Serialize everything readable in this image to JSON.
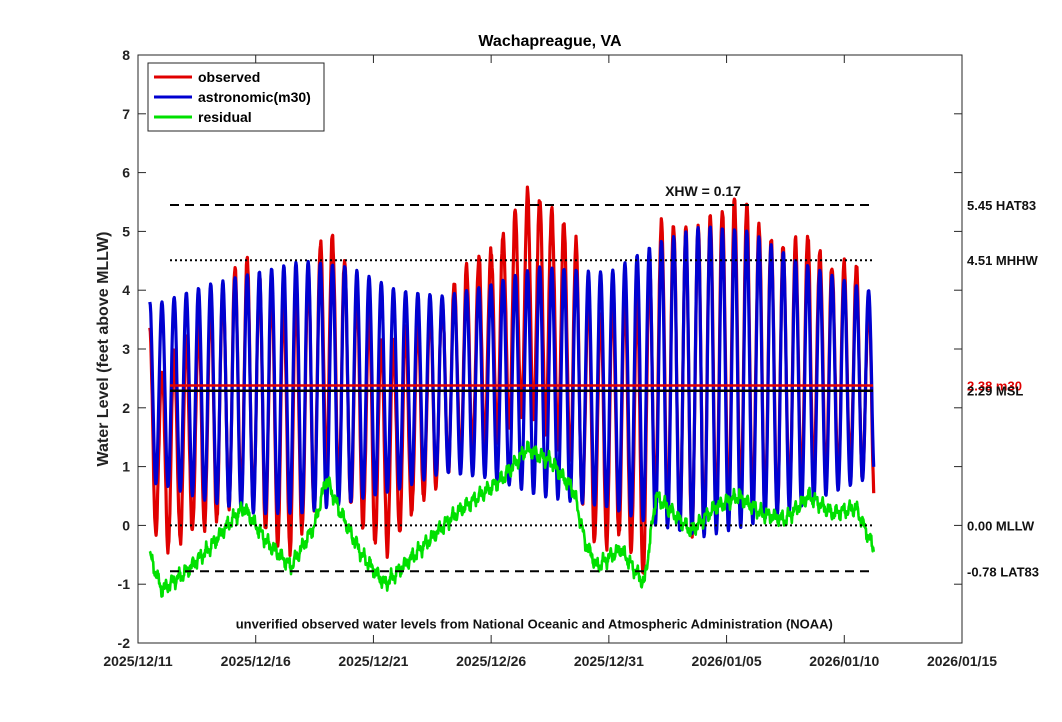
{
  "chart_data": {
    "type": "line",
    "title": "Wachapreague, VA",
    "ylabel": "Water Level (feet above MLLW)",
    "xlabel": "",
    "ylim": [
      -2,
      8
    ],
    "y_ticks": [
      -2,
      -1,
      0,
      1,
      2,
      3,
      4,
      5,
      6,
      7,
      8
    ],
    "x_range": [
      "2025-12-11",
      "2026-01-15"
    ],
    "x_ticks": [
      {
        "date": "2025-12-11",
        "label": "2025/12/11"
      },
      {
        "date": "2025-12-16",
        "label": "2025/12/16"
      },
      {
        "date": "2025-12-21",
        "label": "2025/12/21"
      },
      {
        "date": "2025-12-26",
        "label": "2025/12/26"
      },
      {
        "date": "2025-12-31",
        "label": "2025/12/31"
      },
      {
        "date": "2026-01-05",
        "label": "2026/01/05"
      },
      {
        "date": "2026-01-10",
        "label": "2026/01/10"
      },
      {
        "date": "2026-01-15",
        "label": "2026/01/15"
      }
    ],
    "grid": false,
    "legend": {
      "placement": "top-left",
      "entries": [
        {
          "name": "observed",
          "color": "#e00000"
        },
        {
          "name": "astronomic(m30)",
          "color": "#0000d0"
        },
        {
          "name": "residual",
          "color": "#00e000"
        }
      ]
    },
    "data_start": "2025-12-11 12:00",
    "data_end": "2026-01-11 06:00",
    "tidal_period_hours": 12.42,
    "astronomic_highs": [
      {
        "date": "2025-12-12",
        "value": 3.8
      },
      {
        "date": "2025-12-14",
        "value": 4.1
      },
      {
        "date": "2025-12-16",
        "value": 4.3
      },
      {
        "date": "2025-12-18",
        "value": 4.5
      },
      {
        "date": "2025-12-20",
        "value": 4.4
      },
      {
        "date": "2025-12-22",
        "value": 4.0
      },
      {
        "date": "2025-12-24",
        "value": 3.9
      },
      {
        "date": "2025-12-26",
        "value": 4.1
      },
      {
        "date": "2025-12-28",
        "value": 4.4
      },
      {
        "date": "2025-12-31",
        "value": 4.3
      },
      {
        "date": "2026-01-02",
        "value": 4.8
      },
      {
        "date": "2026-01-04",
        "value": 5.1
      },
      {
        "date": "2026-01-06",
        "value": 5.0
      },
      {
        "date": "2026-01-08",
        "value": 4.5
      },
      {
        "date": "2026-01-11",
        "value": 4.0
      }
    ],
    "astronomic_lows": [
      {
        "date": "2025-12-12",
        "value": 0.7
      },
      {
        "date": "2025-12-14",
        "value": 0.4
      },
      {
        "date": "2025-12-16",
        "value": 0.2
      },
      {
        "date": "2025-12-18",
        "value": 0.2
      },
      {
        "date": "2025-12-20",
        "value": 0.4
      },
      {
        "date": "2025-12-22",
        "value": 0.6
      },
      {
        "date": "2025-12-24",
        "value": 0.9
      },
      {
        "date": "2025-12-26",
        "value": 0.8
      },
      {
        "date": "2025-12-28",
        "value": 0.5
      },
      {
        "date": "2025-12-31",
        "value": 0.3
      },
      {
        "date": "2026-01-02",
        "value": 0.0
      },
      {
        "date": "2026-01-04",
        "value": -0.2
      },
      {
        "date": "2026-01-06",
        "value": 0.0
      },
      {
        "date": "2026-01-08",
        "value": 0.3
      },
      {
        "date": "2026-01-11",
        "value": 0.8
      }
    ],
    "residual": [
      {
        "date": "2025-12-11 12:00",
        "value": -0.5
      },
      {
        "date": "2025-12-12 00:00",
        "value": -1.1
      },
      {
        "date": "2025-12-13 00:00",
        "value": -0.8
      },
      {
        "date": "2025-12-14 00:00",
        "value": -0.4
      },
      {
        "date": "2025-12-15 00:00",
        "value": 0.1
      },
      {
        "date": "2025-12-15 12:00",
        "value": 0.3
      },
      {
        "date": "2025-12-16 12:00",
        "value": -0.3
      },
      {
        "date": "2025-12-17 12:00",
        "value": -0.7
      },
      {
        "date": "2025-12-18 12:00",
        "value": 0.0
      },
      {
        "date": "2025-12-19 00:00",
        "value": 0.8
      },
      {
        "date": "2025-12-19 12:00",
        "value": 0.3
      },
      {
        "date": "2025-12-20 12:00",
        "value": -0.5
      },
      {
        "date": "2025-12-21 12:00",
        "value": -1.0
      },
      {
        "date": "2025-12-22 12:00",
        "value": -0.6
      },
      {
        "date": "2025-12-23 12:00",
        "value": -0.2
      },
      {
        "date": "2025-12-24 12:00",
        "value": 0.2
      },
      {
        "date": "2025-12-25 12:00",
        "value": 0.5
      },
      {
        "date": "2025-12-26 12:00",
        "value": 0.8
      },
      {
        "date": "2025-12-27 12:00",
        "value": 1.3
      },
      {
        "date": "2025-12-28 12:00",
        "value": 1.1
      },
      {
        "date": "2025-12-29 12:00",
        "value": 0.6
      },
      {
        "date": "2025-12-30 00:00",
        "value": -0.3
      },
      {
        "date": "2025-12-30 12:00",
        "value": -0.7
      },
      {
        "date": "2025-12-31 12:00",
        "value": -0.4
      },
      {
        "date": "2026-01-01 12:00",
        "value": -1.0
      },
      {
        "date": "2026-01-02 00:00",
        "value": 0.5
      },
      {
        "date": "2026-01-02 12:00",
        "value": 0.3
      },
      {
        "date": "2026-01-03 12:00",
        "value": -0.1
      },
      {
        "date": "2026-01-04 12:00",
        "value": 0.3
      },
      {
        "date": "2026-01-05 12:00",
        "value": 0.5
      },
      {
        "date": "2026-01-06 12:00",
        "value": 0.2
      },
      {
        "date": "2026-01-07 12:00",
        "value": 0.1
      },
      {
        "date": "2026-01-08 12:00",
        "value": 0.5
      },
      {
        "date": "2026-01-09 12:00",
        "value": 0.2
      },
      {
        "date": "2026-01-10 12:00",
        "value": 0.3
      },
      {
        "date": "2026-01-11 06:00",
        "value": -0.4
      }
    ],
    "reference_lines": [
      {
        "value": 5.45,
        "label": "5.45 HAT83",
        "style": "dashed",
        "color": "#000000"
      },
      {
        "value": 4.51,
        "label": "4.51 MHHW",
        "style": "dotted",
        "color": "#000000"
      },
      {
        "value": 2.38,
        "label": "2.38 m30",
        "style": "solid",
        "color": "#e00000"
      },
      {
        "value": 2.29,
        "label": "2.29 MSL",
        "style": "solid",
        "color": "#000000"
      },
      {
        "value": 0.0,
        "label": "0.00 MLLW",
        "style": "dotted",
        "color": "#000000"
      },
      {
        "value": -0.78,
        "label": "-0.78 LAT83",
        "style": "dashed",
        "color": "#000000"
      }
    ],
    "annotations": [
      {
        "text": "XHW = 0.17",
        "date": "2026-01-04 00:00",
        "y": 5.6
      },
      {
        "text": "unverified observed water levels from National Oceanic and Atmospheric Administration (NOAA)",
        "date": "2025-12-27 20:00",
        "y": -1.75
      }
    ]
  }
}
